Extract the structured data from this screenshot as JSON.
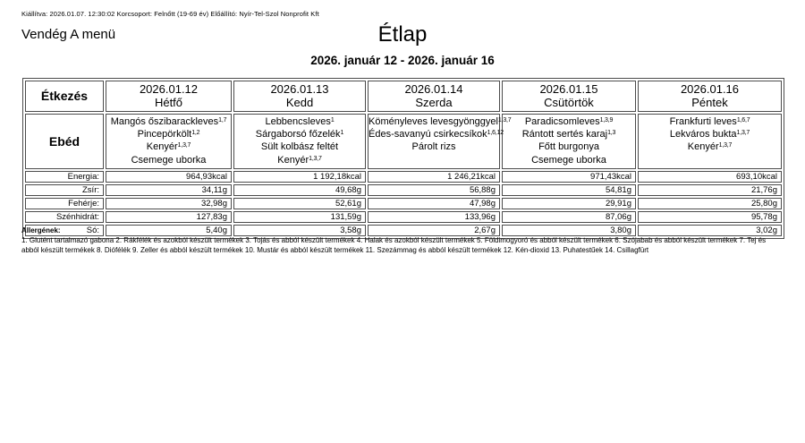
{
  "meta_line": "Kiállítva: 2026.01.07. 12:30:02 Korcsoport: Felnőtt (19-69 év) Előállító: Nyír-Tel-Szol Nonprofit Kft",
  "menu_name": "Vendég A menü",
  "title": "Étlap",
  "date_range": "2026. január 12 - 2026. január 16",
  "table": {
    "meal_column_header": "Étkezés",
    "meal_label": "Ebéd",
    "days": [
      {
        "date": "2026.01.12",
        "day": "Hétfő"
      },
      {
        "date": "2026.01.13",
        "day": "Kedd"
      },
      {
        "date": "2026.01.14",
        "day": "Szerda"
      },
      {
        "date": "2026.01.15",
        "day": "Csütörtök"
      },
      {
        "date": "2026.01.16",
        "day": "Péntek"
      }
    ],
    "menus": [
      [
        {
          "name": "Mangós őszibarackleves",
          "allergens": "1,7"
        },
        {
          "name": "Pincepörkölt",
          "allergens": "1,2"
        },
        {
          "name": "Kenyér",
          "allergens": "1,3,7"
        },
        {
          "name": "Csemege uborka",
          "allergens": ""
        }
      ],
      [
        {
          "name": "Lebbencsleves",
          "allergens": "1"
        },
        {
          "name": "Sárgaborsó főzelék",
          "allergens": "1"
        },
        {
          "name": "Sült kolbász feltét",
          "allergens": ""
        },
        {
          "name": "Kenyér",
          "allergens": "1,3,7"
        }
      ],
      [
        {
          "name": "Köményleves levesgyönggyel",
          "allergens": "1,3,7"
        },
        {
          "name": "Édes-savanyú csirkecsíkok",
          "allergens": "1,6,12"
        },
        {
          "name": "Párolt rizs",
          "allergens": ""
        }
      ],
      [
        {
          "name": "Paradicsomleves",
          "allergens": "1,3,9"
        },
        {
          "name": "Rántott sertés karaj",
          "allergens": "1,3"
        },
        {
          "name": "Főtt burgonya",
          "allergens": ""
        },
        {
          "name": "Csemege uborka",
          "allergens": ""
        }
      ],
      [
        {
          "name": "Frankfurti leves",
          "allergens": "1,6,7"
        },
        {
          "name": "Lekváros bukta",
          "allergens": "1,3,7"
        },
        {
          "name": "Kenyér",
          "allergens": "1,3,7"
        }
      ]
    ],
    "nutrition": [
      {
        "label": "Energia:",
        "values": [
          "964,93kcal",
          "1 192,18kcal",
          "1 246,21kcal",
          "971,43kcal",
          "693,10kcal"
        ]
      },
      {
        "label": "Zsír:",
        "values": [
          "34,11g",
          "49,68g",
          "56,88g",
          "54,81g",
          "21,76g"
        ]
      },
      {
        "label": "Fehérje:",
        "values": [
          "32,98g",
          "52,61g",
          "47,98g",
          "29,91g",
          "25,80g"
        ]
      },
      {
        "label": "Szénhidrát:",
        "values": [
          "127,83g",
          "131,59g",
          "133,96g",
          "87,06g",
          "95,78g"
        ]
      },
      {
        "label": "Só:",
        "values": [
          "5,40g",
          "3,58g",
          "2,67g",
          "3,80g",
          "3,02g"
        ]
      }
    ]
  },
  "allergens": {
    "heading": "Allergének:",
    "text": "1. Glutént tartalmazó gabona 2. Rákfélék és azokból készült termékek 3. Tojás és abból készült termékek 4. Halak és azokból készült termékek 5. Földimogyoró és abból készült termékek 6. Szójabab és abból készült termékek 7. Tej és abból készült termékek 8. Diófélék 9. Zeller és abból készült termékek 10. Mustár és abból készült termékek 11. Szezámmag és abból készült termékek 12. Kén-dioxid 13. Puhatestűek 14. Csillagfürt"
  }
}
